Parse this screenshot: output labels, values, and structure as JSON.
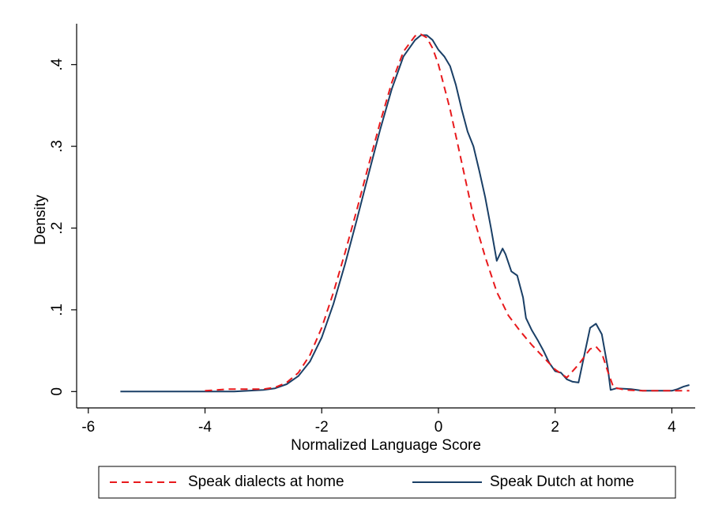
{
  "chart_data": {
    "type": "line",
    "title": "",
    "xlabel": "Normalized Language Score",
    "ylabel": "Density",
    "xlim": [
      -6.2,
      4.4
    ],
    "ylim": [
      -0.02,
      0.45
    ],
    "xticks": [
      -6,
      -4,
      -2,
      0,
      2,
      4
    ],
    "xtick_labels": [
      "-6",
      "-4",
      "-2",
      "0",
      "2",
      "4"
    ],
    "yticks": [
      0,
      0.1,
      0.2,
      0.3,
      0.4
    ],
    "ytick_labels": [
      "0",
      ".1",
      ".2",
      ".3",
      ".4"
    ],
    "grid": false,
    "legend": "bottom",
    "series": [
      {
        "name": "Speak dialects at home",
        "color": "#e8191c",
        "dash": "dashed",
        "x": [
          -4.0,
          -3.8,
          -3.6,
          -3.4,
          -3.2,
          -3.0,
          -2.8,
          -2.6,
          -2.4,
          -2.2,
          -2.0,
          -1.8,
          -1.6,
          -1.4,
          -1.2,
          -1.0,
          -0.8,
          -0.6,
          -0.4,
          -0.3,
          -0.2,
          -0.1,
          0.0,
          0.2,
          0.4,
          0.6,
          0.8,
          1.0,
          1.2,
          1.4,
          1.6,
          1.8,
          2.0,
          2.2,
          2.4,
          2.6,
          2.7,
          2.8,
          2.9,
          3.0,
          3.2,
          3.5,
          4.0,
          4.3
        ],
        "y": [
          0.001,
          0.002,
          0.003,
          0.003,
          0.003,
          0.003,
          0.005,
          0.011,
          0.023,
          0.045,
          0.078,
          0.121,
          0.17,
          0.222,
          0.276,
          0.329,
          0.378,
          0.416,
          0.435,
          0.437,
          0.433,
          0.42,
          0.4,
          0.345,
          0.28,
          0.214,
          0.165,
          0.122,
          0.093,
          0.074,
          0.057,
          0.042,
          0.027,
          0.017,
          0.033,
          0.052,
          0.055,
          0.047,
          0.025,
          0.005,
          0.002,
          0.001,
          0.001,
          0.001
        ]
      },
      {
        "name": "Speak Dutch at home",
        "color": "#1a3f66",
        "dash": "solid",
        "x": [
          -5.45,
          -5.0,
          -4.5,
          -4.0,
          -3.5,
          -3.0,
          -2.8,
          -2.6,
          -2.4,
          -2.2,
          -2.0,
          -1.8,
          -1.6,
          -1.4,
          -1.2,
          -1.0,
          -0.8,
          -0.6,
          -0.4,
          -0.3,
          -0.2,
          -0.1,
          0.0,
          0.1,
          0.2,
          0.3,
          0.4,
          0.5,
          0.6,
          0.7,
          0.8,
          0.9,
          1.0,
          1.1,
          1.15,
          1.25,
          1.35,
          1.45,
          1.5,
          1.6,
          1.7,
          1.8,
          1.9,
          2.0,
          2.1,
          2.2,
          2.3,
          2.4,
          2.5,
          2.6,
          2.7,
          2.8,
          2.9,
          2.95,
          3.05,
          3.3,
          3.5,
          4.0,
          4.1,
          4.2,
          4.3
        ],
        "y": [
          0.0,
          0.0,
          0.0,
          0.0,
          0.0,
          0.002,
          0.004,
          0.009,
          0.019,
          0.037,
          0.066,
          0.107,
          0.156,
          0.21,
          0.265,
          0.32,
          0.37,
          0.41,
          0.43,
          0.436,
          0.436,
          0.43,
          0.418,
          0.41,
          0.398,
          0.375,
          0.345,
          0.318,
          0.3,
          0.27,
          0.238,
          0.2,
          0.16,
          0.175,
          0.168,
          0.147,
          0.142,
          0.115,
          0.09,
          0.075,
          0.063,
          0.05,
          0.035,
          0.025,
          0.023,
          0.015,
          0.012,
          0.011,
          0.045,
          0.078,
          0.083,
          0.07,
          0.03,
          0.002,
          0.004,
          0.003,
          0.001,
          0.001,
          0.003,
          0.006,
          0.008
        ]
      }
    ]
  }
}
